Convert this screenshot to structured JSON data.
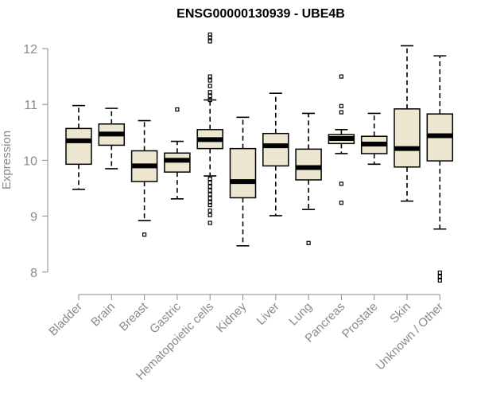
{
  "chart_data": {
    "type": "box",
    "title": "ENSG00000130939 - UBE4B",
    "ylabel": "Expression",
    "xlabel": "",
    "ylim": [
      7.7,
      12.35
    ],
    "yticks": [
      8,
      9,
      10,
      11,
      12
    ],
    "grid": false,
    "categories": [
      "Bladder",
      "Brain",
      "Breast",
      "Gastric",
      "Hematopoietic cells",
      "Kidney",
      "Liver",
      "Lung",
      "Pancreas",
      "Prostate",
      "Skin",
      "Unknown / Other"
    ],
    "boxes": [
      {
        "whisker_low": 9.48,
        "q1": 9.93,
        "median": 10.35,
        "q3": 10.57,
        "whisker_high": 10.98,
        "outliers": []
      },
      {
        "whisker_low": 9.85,
        "q1": 10.27,
        "median": 10.47,
        "q3": 10.65,
        "whisker_high": 10.93,
        "outliers": []
      },
      {
        "whisker_low": 8.92,
        "q1": 9.62,
        "median": 9.9,
        "q3": 10.17,
        "whisker_high": 10.71,
        "outliers": [
          8.67
        ]
      },
      {
        "whisker_low": 9.31,
        "q1": 9.79,
        "median": 10.0,
        "q3": 10.13,
        "whisker_high": 10.34,
        "outliers": [
          10.91
        ]
      },
      {
        "whisker_low": 9.72,
        "q1": 10.21,
        "median": 10.37,
        "q3": 10.55,
        "whisker_high": 11.08,
        "outliers": [
          12.25,
          12.2,
          12.13,
          11.5,
          11.43,
          11.33,
          11.22,
          11.15,
          11.08,
          9.67,
          9.6,
          9.53,
          9.46,
          9.39,
          9.32,
          9.25,
          9.2,
          9.1,
          9.02,
          8.88
        ]
      },
      {
        "whisker_low": 8.47,
        "q1": 9.33,
        "median": 9.62,
        "q3": 10.21,
        "whisker_high": 10.77,
        "outliers": []
      },
      {
        "whisker_low": 9.01,
        "q1": 9.9,
        "median": 10.26,
        "q3": 10.48,
        "whisker_high": 11.2,
        "outliers": []
      },
      {
        "whisker_low": 9.12,
        "q1": 9.65,
        "median": 9.87,
        "q3": 10.2,
        "whisker_high": 10.84,
        "outliers": [
          8.52
        ]
      },
      {
        "whisker_low": 10.12,
        "q1": 10.3,
        "median": 10.39,
        "q3": 10.46,
        "whisker_high": 10.55,
        "outliers": [
          11.5,
          10.97,
          10.86,
          9.58,
          9.24
        ]
      },
      {
        "whisker_low": 9.93,
        "q1": 10.12,
        "median": 10.29,
        "q3": 10.43,
        "whisker_high": 10.84,
        "outliers": []
      },
      {
        "whisker_low": 9.27,
        "q1": 9.88,
        "median": 10.21,
        "q3": 10.92,
        "whisker_high": 12.05,
        "outliers": []
      },
      {
        "whisker_low": 8.77,
        "q1": 9.99,
        "median": 10.44,
        "q3": 10.83,
        "whisker_high": 11.87,
        "outliers": [
          7.99,
          7.92,
          7.85
        ]
      }
    ],
    "colors": {
      "box_fill": "#ede6d0",
      "box_stroke": "#000000",
      "axis": "#8a8a8a",
      "label": "#8a8a8a"
    }
  }
}
